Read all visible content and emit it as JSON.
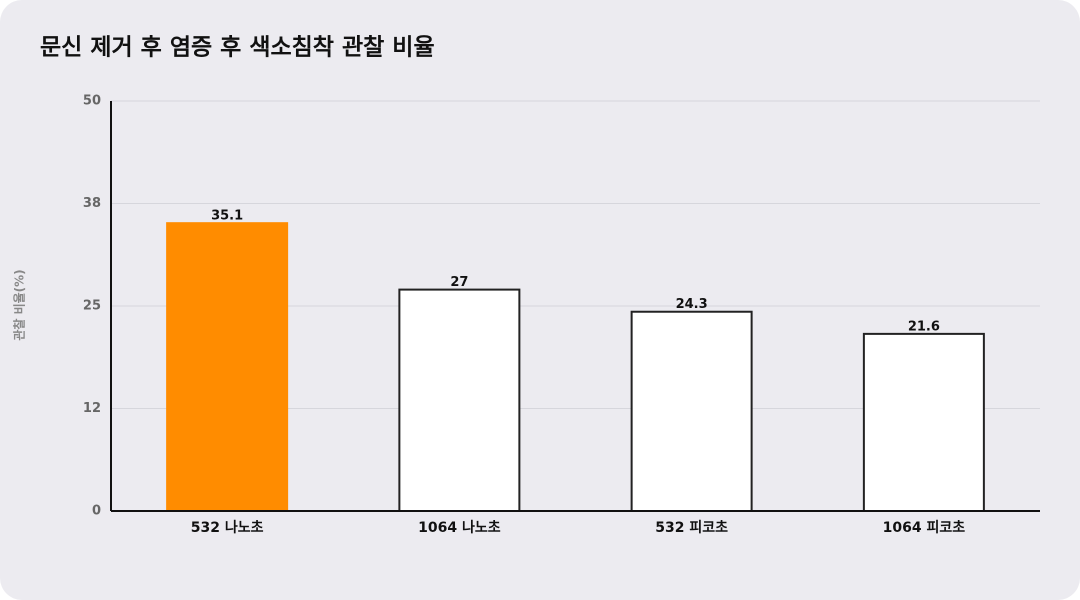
{
  "chart_data": {
    "type": "bar",
    "title": "문신 제거 후 염증 후 색소침착 관찰 비율",
    "y_label": "관찰 비율(%)",
    "categories": [
      "532 나노초",
      "1064 나노초",
      "532 피코초",
      "1064 피코초"
    ],
    "values": [
      35.1,
      27,
      24.3,
      21.6
    ],
    "colors": [
      "#ff8c00",
      "#ffffff",
      "#ffffff",
      "#ffffff"
    ],
    "ylim": [
      0,
      50
    ],
    "yticks": [
      0,
      {
        "value": 12.5,
        "label": "12"
      },
      25,
      {
        "value": 37.5,
        "label": "38"
      },
      50
    ],
    "grid": true
  }
}
